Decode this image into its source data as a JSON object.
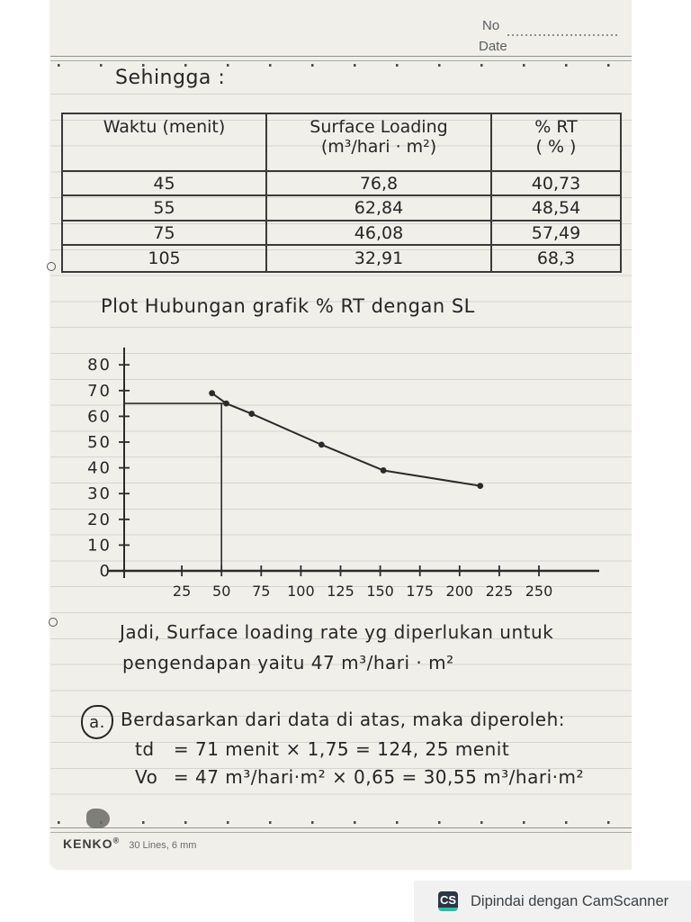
{
  "scan": {
    "no_label": "No",
    "date_label": "Date",
    "footer_brand": "KENKO",
    "footer_reg": "®",
    "footer_spec": "30 Lines, 6 mm",
    "badge": {
      "icon": "CS",
      "text": "Dipindai dengan CamScanner",
      "icon_bg": "#2b3547",
      "icon_accent": "#2abfa3",
      "strip_bg": "#f1f1f2"
    }
  },
  "heading": "Sehingga :",
  "table": {
    "headers": [
      {
        "line1": "Waktu (menit)",
        "line2": ""
      },
      {
        "line1": "Surface Loading",
        "line2": "(m³/hari · m²)"
      },
      {
        "line1": "% RT",
        "line2": "( % )"
      }
    ],
    "rows": [
      [
        "45",
        "76,8",
        "40,73"
      ],
      [
        "55",
        "62,84",
        "48,54"
      ],
      [
        "75",
        "46,08",
        "57,49"
      ],
      [
        "105",
        "32,91",
        "68,3"
      ]
    ]
  },
  "plot_title": "Plot Hubungan grafik % RT dengan SL",
  "chart_data": {
    "type": "line",
    "title": "Plot Hubungan grafik % RT dengan SL",
    "x_ticks": [
      25,
      50,
      75,
      100,
      125,
      150,
      175,
      200,
      225,
      250
    ],
    "y_ticks": [
      0,
      10,
      20,
      30,
      40,
      50,
      60,
      70,
      80
    ],
    "xlim": [
      0,
      260
    ],
    "ylim": [
      0,
      80
    ],
    "points": [
      [
        44,
        69
      ],
      [
        53,
        65
      ],
      [
        69,
        61
      ],
      [
        113,
        49
      ],
      [
        152,
        39
      ],
      [
        213,
        33
      ]
    ],
    "reference_lines": {
      "vertical_x": 50,
      "horizontal_y": 65
    },
    "annotation_reading": "47 m³/hari·m²",
    "grid": false,
    "legend": false,
    "ink_color": "#2b2b2b"
  },
  "conclusion": {
    "line1": "Jadi, Surface loading rate yg diperlukan untuk",
    "line2": "pengendapan yaitu 47 m³/hari · m²"
  },
  "section_a": {
    "bullet": "a.",
    "intro": "Berdasarkan dari data di atas, maka diperoleh:",
    "calc1_lhs": "td",
    "calc1_body": "= 71 menit × 1,75 = 124, 25 menit",
    "calc2_lhs": "Vo",
    "calc2_body": "= 47 m³/hari·m² × 0,65 = 30,55 m³/hari·m²"
  }
}
